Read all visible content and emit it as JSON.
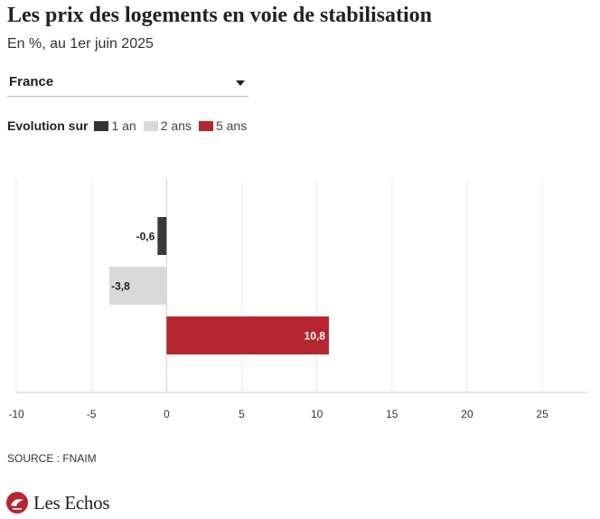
{
  "header": {
    "title": "Les prix des logements en voie de stabilisation",
    "subtitle": "En %, au 1er juin 2025"
  },
  "selector": {
    "value": "France",
    "icon": "chevron-down-icon"
  },
  "legend": {
    "title": "Evolution sur",
    "items": [
      {
        "label": "1 an",
        "color": "#333333"
      },
      {
        "label": "2 ans",
        "color": "#d9d9d9"
      },
      {
        "label": "5 ans",
        "color": "#b5262e"
      }
    ]
  },
  "chart_data": {
    "type": "bar",
    "orientation": "horizontal",
    "categories": [
      "1 an",
      "2 ans",
      "5 ans"
    ],
    "values": [
      -0.6,
      -3.8,
      10.8
    ],
    "value_labels": [
      "-0,6",
      "-3,8",
      "10,8"
    ],
    "colors": [
      "#3a3a3a",
      "#d9d9d9",
      "#b5262e"
    ],
    "label_colors": [
      "#222222",
      "#222222",
      "#ffffff"
    ],
    "xlim": [
      -10,
      28
    ],
    "xticks": [
      -10,
      -5,
      0,
      5,
      10,
      15,
      20,
      25
    ],
    "xtick_labels": [
      "-10",
      "-5",
      "0",
      "5",
      "10",
      "15",
      "20",
      "25"
    ],
    "grid": true,
    "legend_position": "top-left"
  },
  "footer": {
    "source": "SOURCE : FNAIM",
    "brand": "Les Echos",
    "brand_icon": "les-echos-logo-icon"
  }
}
